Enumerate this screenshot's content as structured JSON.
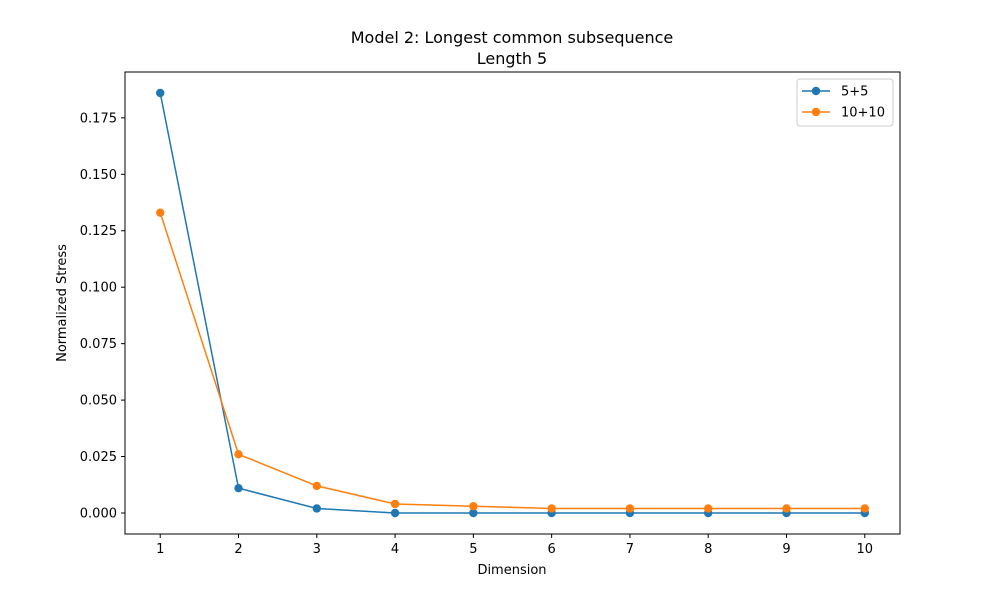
{
  "chart_data": {
    "type": "line",
    "title": "Model 2: Longest common subsequence",
    "subtitle": "Length 5",
    "xlabel": "Dimension",
    "ylabel": "Normalized Stress",
    "x": [
      1,
      2,
      3,
      4,
      5,
      6,
      7,
      8,
      9,
      10
    ],
    "xlim": [
      0.55,
      10.45
    ],
    "ylim": [
      -0.0093,
      0.1953
    ],
    "xticks": [
      "1",
      "2",
      "3",
      "4",
      "5",
      "6",
      "7",
      "8",
      "9",
      "10"
    ],
    "yticks": [
      "0.000",
      "0.025",
      "0.050",
      "0.075",
      "0.100",
      "0.125",
      "0.150",
      "0.175"
    ],
    "grid": false,
    "legend_position": "top-right",
    "series": [
      {
        "name": "5+5",
        "color": "#1f77b4",
        "values": [
          0.186,
          0.011,
          0.002,
          0.0,
          0.0,
          0.0,
          0.0,
          0.0,
          0.0,
          0.0
        ]
      },
      {
        "name": "10+10",
        "color": "#ff7f0e",
        "values": [
          0.133,
          0.026,
          0.012,
          0.004,
          0.003,
          0.002,
          0.002,
          0.002,
          0.002,
          0.002
        ]
      }
    ]
  }
}
